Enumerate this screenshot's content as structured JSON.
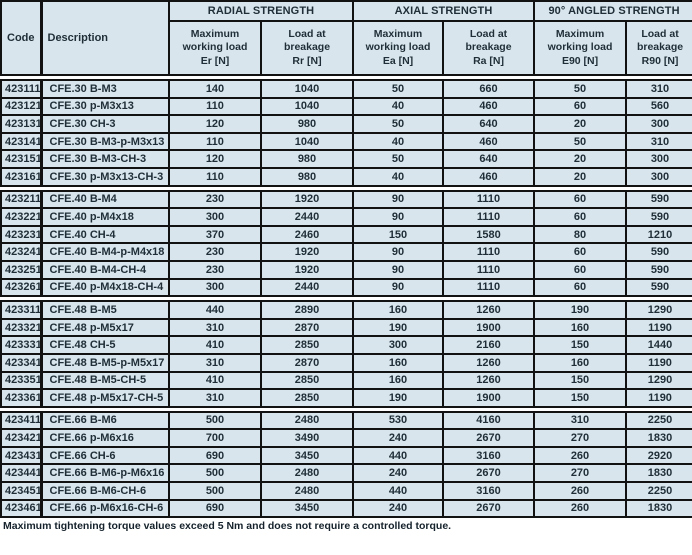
{
  "colors": {
    "cell_background": "#d8e5ec",
    "border": "#121212",
    "text": "#1f2e38",
    "page_background": "#ffffff"
  },
  "header": {
    "code": "Code",
    "description": "Description",
    "sections": [
      {
        "title": "RADIAL STRENGTH",
        "sub": [
          "Maximum\nworking load\nEr [N]",
          "Load at\nbreakage\nRr [N]"
        ]
      },
      {
        "title": "AXIAL STRENGTH",
        "sub": [
          "Maximum\nworking load\nEa [N]",
          "Load at\nbreakage\nRa [N]"
        ]
      },
      {
        "title": "90° ANGLED STRENGTH",
        "sub": [
          "Maximum\nworking load\nE90 [N]",
          "Load at\nbreakage\nR90 [N]"
        ]
      }
    ]
  },
  "groups": [
    {
      "rows": [
        [
          "423111",
          "CFE.30 B-M3",
          "140",
          "1040",
          "50",
          "660",
          "50",
          "310"
        ],
        [
          "423121",
          "CFE.30 p-M3x13",
          "110",
          "1040",
          "40",
          "460",
          "60",
          "560"
        ],
        [
          "423131",
          "CFE.30 CH-3",
          "120",
          "980",
          "50",
          "640",
          "20",
          "300"
        ],
        [
          "423141",
          "CFE.30 B-M3-p-M3x13",
          "110",
          "1040",
          "40",
          "460",
          "50",
          "310"
        ],
        [
          "423151",
          "CFE.30 B-M3-CH-3",
          "120",
          "980",
          "50",
          "640",
          "20",
          "300"
        ],
        [
          "423161",
          "CFE.30 p-M3x13-CH-3",
          "110",
          "980",
          "40",
          "460",
          "20",
          "300"
        ]
      ]
    },
    {
      "rows": [
        [
          "423211",
          "CFE.40 B-M4",
          "230",
          "1920",
          "90",
          "1110",
          "60",
          "590"
        ],
        [
          "423221",
          "CFE.40 p-M4x18",
          "300",
          "2440",
          "90",
          "1110",
          "60",
          "590"
        ],
        [
          "423231",
          "CFE.40 CH-4",
          "370",
          "2460",
          "150",
          "1580",
          "80",
          "1210"
        ],
        [
          "423241",
          "CFE.40 B-M4-p-M4x18",
          "230",
          "1920",
          "90",
          "1110",
          "60",
          "590"
        ],
        [
          "423251",
          "CFE.40 B-M4-CH-4",
          "230",
          "1920",
          "90",
          "1110",
          "60",
          "590"
        ],
        [
          "423261",
          "CFE.40 p-M4x18-CH-4",
          "300",
          "2440",
          "90",
          "1110",
          "60",
          "590"
        ]
      ]
    },
    {
      "rows": [
        [
          "423311",
          "CFE.48 B-M5",
          "440",
          "2890",
          "160",
          "1260",
          "190",
          "1290"
        ],
        [
          "423321",
          "CFE.48 p-M5x17",
          "310",
          "2870",
          "190",
          "1900",
          "160",
          "1190"
        ],
        [
          "423331",
          "CFE.48 CH-5",
          "410",
          "2850",
          "300",
          "2160",
          "150",
          "1440"
        ],
        [
          "423341",
          "CFE.48 B-M5-p-M5x17",
          "310",
          "2870",
          "160",
          "1260",
          "160",
          "1190"
        ],
        [
          "423351",
          "CFE.48 B-M5-CH-5",
          "410",
          "2850",
          "160",
          "1260",
          "150",
          "1290"
        ],
        [
          "423361",
          "CFE.48 p-M5x17-CH-5",
          "310",
          "2850",
          "190",
          "1900",
          "150",
          "1190"
        ]
      ]
    },
    {
      "rows": [
        [
          "423411",
          "CFE.66 B-M6",
          "500",
          "2480",
          "530",
          "4160",
          "310",
          "2250"
        ],
        [
          "423421",
          "CFE.66 p-M6x16",
          "700",
          "3490",
          "240",
          "2670",
          "270",
          "1830"
        ],
        [
          "423431",
          "CFE.66 CH-6",
          "690",
          "3450",
          "440",
          "3160",
          "260",
          "2920"
        ],
        [
          "423441",
          "CFE.66 B-M6-p-M6x16",
          "500",
          "2480",
          "240",
          "2670",
          "270",
          "1830"
        ],
        [
          "423451",
          "CFE.66 B-M6-CH-6",
          "500",
          "2480",
          "440",
          "3160",
          "260",
          "2250"
        ],
        [
          "423461",
          "CFE.66 p-M6x16-CH-6",
          "690",
          "3450",
          "240",
          "2670",
          "260",
          "1830"
        ]
      ]
    }
  ],
  "footnote": "Maximum tightening torque values exceed 5 Nm and does not require a controlled torque."
}
